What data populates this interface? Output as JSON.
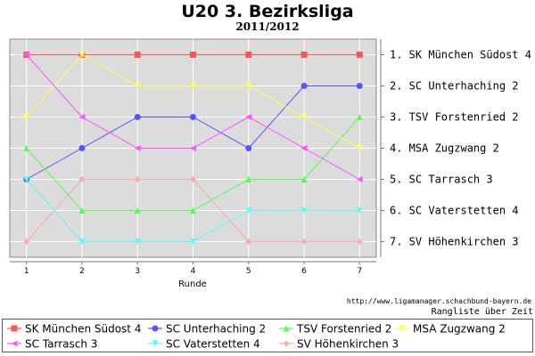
{
  "chart_data": {
    "type": "line",
    "title": "U20 3. Bezirksliga",
    "subtitle": "2011/2012",
    "xlabel": "Runde",
    "ylabel": "",
    "categories": [
      "1",
      "2",
      "3",
      "4",
      "5",
      "6",
      "7"
    ],
    "x": [
      1,
      2,
      3,
      4,
      5,
      6,
      7
    ],
    "xlim": [
      0.7,
      7.3
    ],
    "ylim": [
      0.5,
      7.5
    ],
    "y_inverted": true,
    "y_tick_labels": [
      "1. SK München Südost 4",
      "2. SC Unterhaching 2",
      "3. TSV Forstenried 2",
      "4. MSA Zugzwang 2",
      "5. SC Tarrasch 3",
      "6. SC Vaterstetten 4",
      "7. SV Höhenkirchen 3"
    ],
    "grid": true,
    "legend_position": "bottom",
    "source_text": "http://www.ligamanager.schachbund-bayern.de",
    "caption": "Rangliste über Zeit",
    "series": [
      {
        "name": "SK München Südost 4",
        "color": "#ff5555",
        "marker": "square",
        "values": [
          1,
          1,
          1,
          1,
          1,
          1,
          1
        ]
      },
      {
        "name": "SC Unterhaching 2",
        "color": "#5555ff",
        "marker": "circle",
        "values": [
          5,
          4,
          3,
          3,
          4,
          2,
          2
        ]
      },
      {
        "name": "TSV Forstenried 2",
        "color": "#55ff55",
        "marker": "triangle-up",
        "values": [
          4,
          6,
          6,
          6,
          5,
          5,
          3
        ]
      },
      {
        "name": "MSA Zugzwang 2",
        "color": "#ffff55",
        "marker": "triangle-down",
        "values": [
          3,
          1,
          2,
          2,
          2,
          3,
          4
        ]
      },
      {
        "name": "SC Tarrasch 3",
        "color": "#ff55ff",
        "marker": "triangle-left",
        "values": [
          1,
          3,
          4,
          4,
          3,
          4,
          5
        ]
      },
      {
        "name": "SC Vaterstetten 4",
        "color": "#55ffff",
        "marker": "triangle-down",
        "values": [
          5,
          7,
          7,
          7,
          6,
          6,
          6
        ]
      },
      {
        "name": "SV Höhenkirchen 3",
        "color": "#ffaaaa",
        "marker": "diamond",
        "values": [
          7,
          5,
          5,
          5,
          7,
          7,
          7
        ]
      }
    ]
  }
}
